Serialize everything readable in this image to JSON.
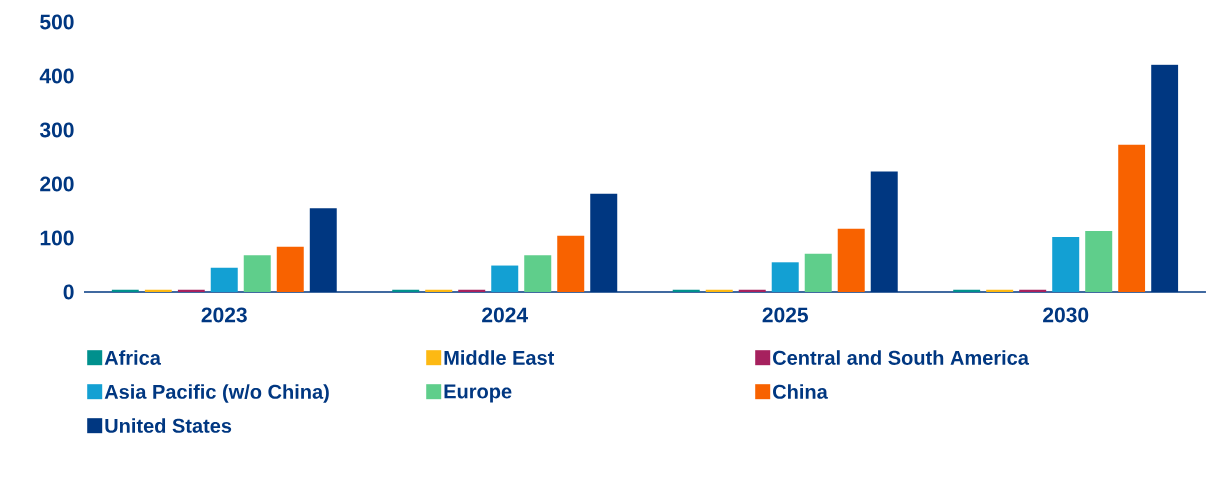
{
  "chart_data": {
    "type": "bar",
    "categories": [
      "2023",
      "2024",
      "2025",
      "2030"
    ],
    "series": [
      {
        "name": "Africa",
        "color": "#00908d",
        "values": [
          4,
          4,
          4,
          4
        ]
      },
      {
        "name": "Middle East",
        "color": "#fdb913",
        "values": [
          4,
          4,
          4,
          4
        ]
      },
      {
        "name": "Central and South America",
        "color": "#a6215e",
        "values": [
          4,
          4,
          4,
          4
        ]
      },
      {
        "name": "Asia Pacific (w/o China)",
        "color": "#13a0d3",
        "values": [
          45,
          49,
          55,
          102
        ]
      },
      {
        "name": "Europe",
        "color": "#5fce8b",
        "values": [
          68,
          68,
          71,
          113
        ]
      },
      {
        "name": "China",
        "color": "#f86200",
        "values": [
          84,
          104,
          117,
          273
        ]
      },
      {
        "name": "United States",
        "color": "#003781",
        "values": [
          155,
          182,
          223,
          421
        ]
      }
    ],
    "ylim": [
      0,
      500
    ],
    "yticks": [
      0,
      100,
      200,
      300,
      400,
      500
    ],
    "grid": false,
    "legend": "bottom"
  }
}
